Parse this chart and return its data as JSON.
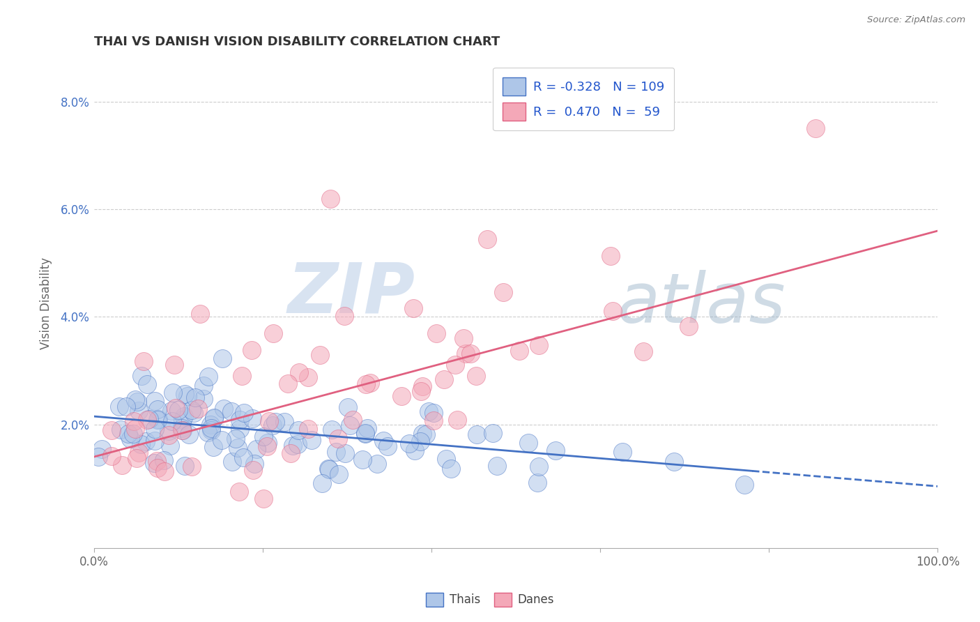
{
  "title": "THAI VS DANISH VISION DISABILITY CORRELATION CHART",
  "source": "Source: ZipAtlas.com",
  "ylabel": "Vision Disability",
  "xlim": [
    0.0,
    1.0
  ],
  "ylim": [
    -0.003,
    0.088
  ],
  "yticks": [
    0.0,
    0.02,
    0.04,
    0.06,
    0.08
  ],
  "ytick_labels": [
    "",
    "2.0%",
    "4.0%",
    "6.0%",
    "8.0%"
  ],
  "xtick_positions": [
    0.0,
    0.2,
    0.4,
    0.6,
    0.8,
    1.0
  ],
  "xtick_labels": [
    "0.0%",
    "",
    "",
    "",
    "",
    "100.0%"
  ],
  "bg_color": "#ffffff",
  "grid_color": "#cccccc",
  "thai_color": "#aec6e8",
  "danish_color": "#f4a8b8",
  "thai_line_color": "#4472c4",
  "danish_line_color": "#e06080",
  "thai_R": -0.328,
  "thai_N": 109,
  "danish_R": 0.47,
  "danish_N": 59,
  "watermark_zip": "ZIP",
  "watermark_atlas": "atlas",
  "thai_intercept": 0.0215,
  "thai_slope": -0.013,
  "danish_intercept": 0.014,
  "danish_slope": 0.042
}
